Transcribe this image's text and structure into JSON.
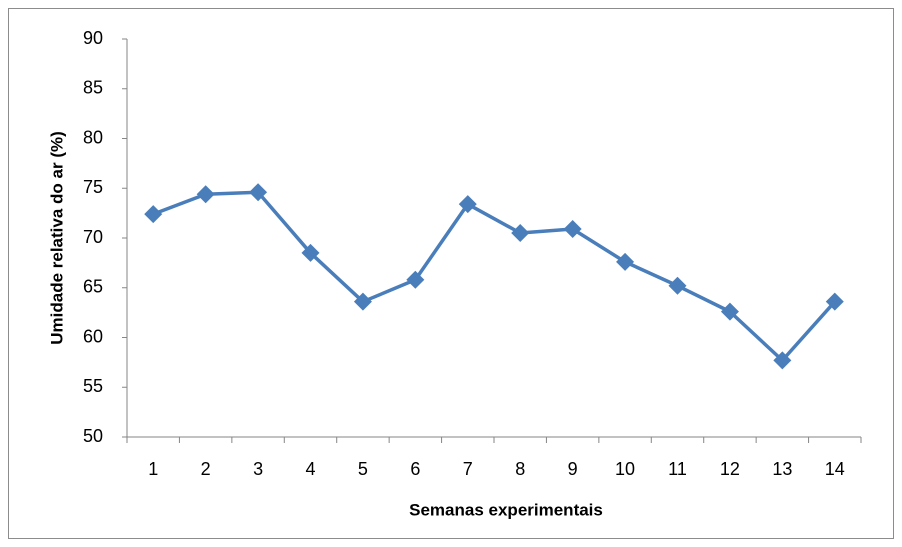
{
  "chart_data": {
    "type": "line",
    "x_label": "Semanas experimentais",
    "y_label": "Umidade relativa do ar (%)",
    "categories": [
      "1",
      "2",
      "3",
      "4",
      "5",
      "6",
      "7",
      "8",
      "9",
      "10",
      "11",
      "12",
      "13",
      "14"
    ],
    "values": [
      72.4,
      74.4,
      74.6,
      68.5,
      63.6,
      65.8,
      73.4,
      70.5,
      70.9,
      67.6,
      65.2,
      62.6,
      57.7,
      63.6
    ],
    "color": "#4a7ebb",
    "ylim": [
      50,
      90
    ],
    "yticks": [
      50,
      55,
      60,
      65,
      70,
      75,
      80,
      85,
      90
    ]
  }
}
